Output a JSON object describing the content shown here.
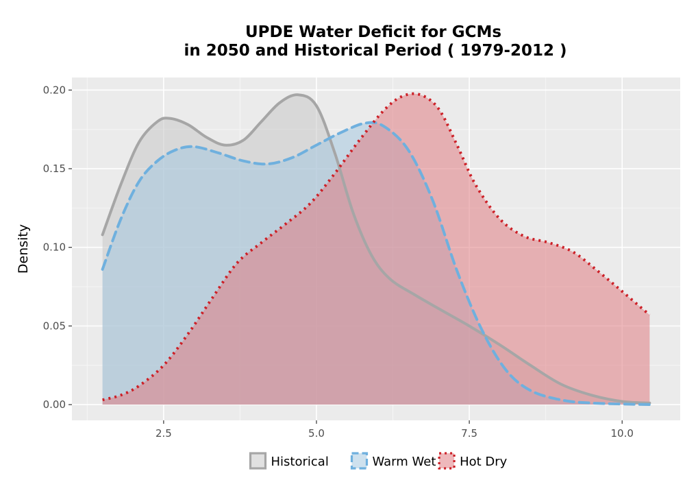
{
  "chart_data": {
    "type": "area",
    "title_line1": "UPDE  Water Deficit for GCMs",
    "title_line2": "in 2050 and Historical Period ( 1979-2012 )",
    "xlabel": "",
    "ylabel": "Density",
    "xlim": [
      1.0,
      10.95
    ],
    "ylim": [
      -0.01,
      0.208
    ],
    "x_ticks": [
      2.5,
      5.0,
      7.5,
      10.0
    ],
    "x_tick_labels": [
      "2.5",
      "5.0",
      "7.5",
      "10.0"
    ],
    "y_ticks": [
      0.0,
      0.05,
      0.1,
      0.15,
      0.2
    ],
    "y_tick_labels": [
      "0.00",
      "0.05",
      "0.10",
      "0.15",
      "0.20"
    ],
    "grid": true,
    "legend_position": "bottom",
    "series": [
      {
        "name": "Historical",
        "fill": "#c8c8c8",
        "line_color": "#a6a6a6",
        "line_style": "solid",
        "points": [
          [
            1.5,
            0.108
          ],
          [
            1.8,
            0.14
          ],
          [
            2.1,
            0.167
          ],
          [
            2.4,
            0.18
          ],
          [
            2.6,
            0.182
          ],
          [
            2.9,
            0.178
          ],
          [
            3.2,
            0.17
          ],
          [
            3.5,
            0.165
          ],
          [
            3.8,
            0.168
          ],
          [
            4.1,
            0.18
          ],
          [
            4.4,
            0.192
          ],
          [
            4.7,
            0.197
          ],
          [
            5.0,
            0.19
          ],
          [
            5.3,
            0.16
          ],
          [
            5.6,
            0.122
          ],
          [
            5.9,
            0.095
          ],
          [
            6.2,
            0.08
          ],
          [
            6.6,
            0.07
          ],
          [
            7.0,
            0.061
          ],
          [
            7.5,
            0.05
          ],
          [
            8.0,
            0.038
          ],
          [
            8.5,
            0.025
          ],
          [
            9.0,
            0.013
          ],
          [
            9.5,
            0.006
          ],
          [
            10.0,
            0.002
          ],
          [
            10.45,
            0.001
          ]
        ]
      },
      {
        "name": "Warm Wet",
        "fill": "#a6c9e0",
        "line_color": "#6fb0de",
        "line_style": "dashed",
        "points": [
          [
            1.5,
            0.086
          ],
          [
            1.8,
            0.118
          ],
          [
            2.1,
            0.142
          ],
          [
            2.4,
            0.155
          ],
          [
            2.7,
            0.162
          ],
          [
            3.0,
            0.164
          ],
          [
            3.4,
            0.16
          ],
          [
            3.8,
            0.155
          ],
          [
            4.2,
            0.153
          ],
          [
            4.6,
            0.157
          ],
          [
            5.0,
            0.165
          ],
          [
            5.4,
            0.173
          ],
          [
            5.8,
            0.179
          ],
          [
            6.1,
            0.177
          ],
          [
            6.5,
            0.162
          ],
          [
            6.9,
            0.13
          ],
          [
            7.3,
            0.085
          ],
          [
            7.7,
            0.048
          ],
          [
            8.1,
            0.022
          ],
          [
            8.5,
            0.009
          ],
          [
            9.0,
            0.003
          ],
          [
            9.5,
            0.001
          ],
          [
            10.45,
            0.0
          ]
        ]
      },
      {
        "name": "Hot Dry",
        "fill": "#e07e84",
        "line_color": "#cc2027",
        "line_style": "dotted",
        "points": [
          [
            1.5,
            0.003
          ],
          [
            1.8,
            0.006
          ],
          [
            2.1,
            0.012
          ],
          [
            2.5,
            0.025
          ],
          [
            2.9,
            0.045
          ],
          [
            3.3,
            0.068
          ],
          [
            3.7,
            0.09
          ],
          [
            4.1,
            0.103
          ],
          [
            4.5,
            0.115
          ],
          [
            4.9,
            0.128
          ],
          [
            5.3,
            0.147
          ],
          [
            5.7,
            0.168
          ],
          [
            6.1,
            0.187
          ],
          [
            6.4,
            0.196
          ],
          [
            6.7,
            0.197
          ],
          [
            7.0,
            0.188
          ],
          [
            7.3,
            0.165
          ],
          [
            7.6,
            0.14
          ],
          [
            8.0,
            0.118
          ],
          [
            8.4,
            0.107
          ],
          [
            8.8,
            0.103
          ],
          [
            9.2,
            0.097
          ],
          [
            9.6,
            0.085
          ],
          [
            10.0,
            0.072
          ],
          [
            10.45,
            0.057
          ]
        ]
      }
    ]
  }
}
